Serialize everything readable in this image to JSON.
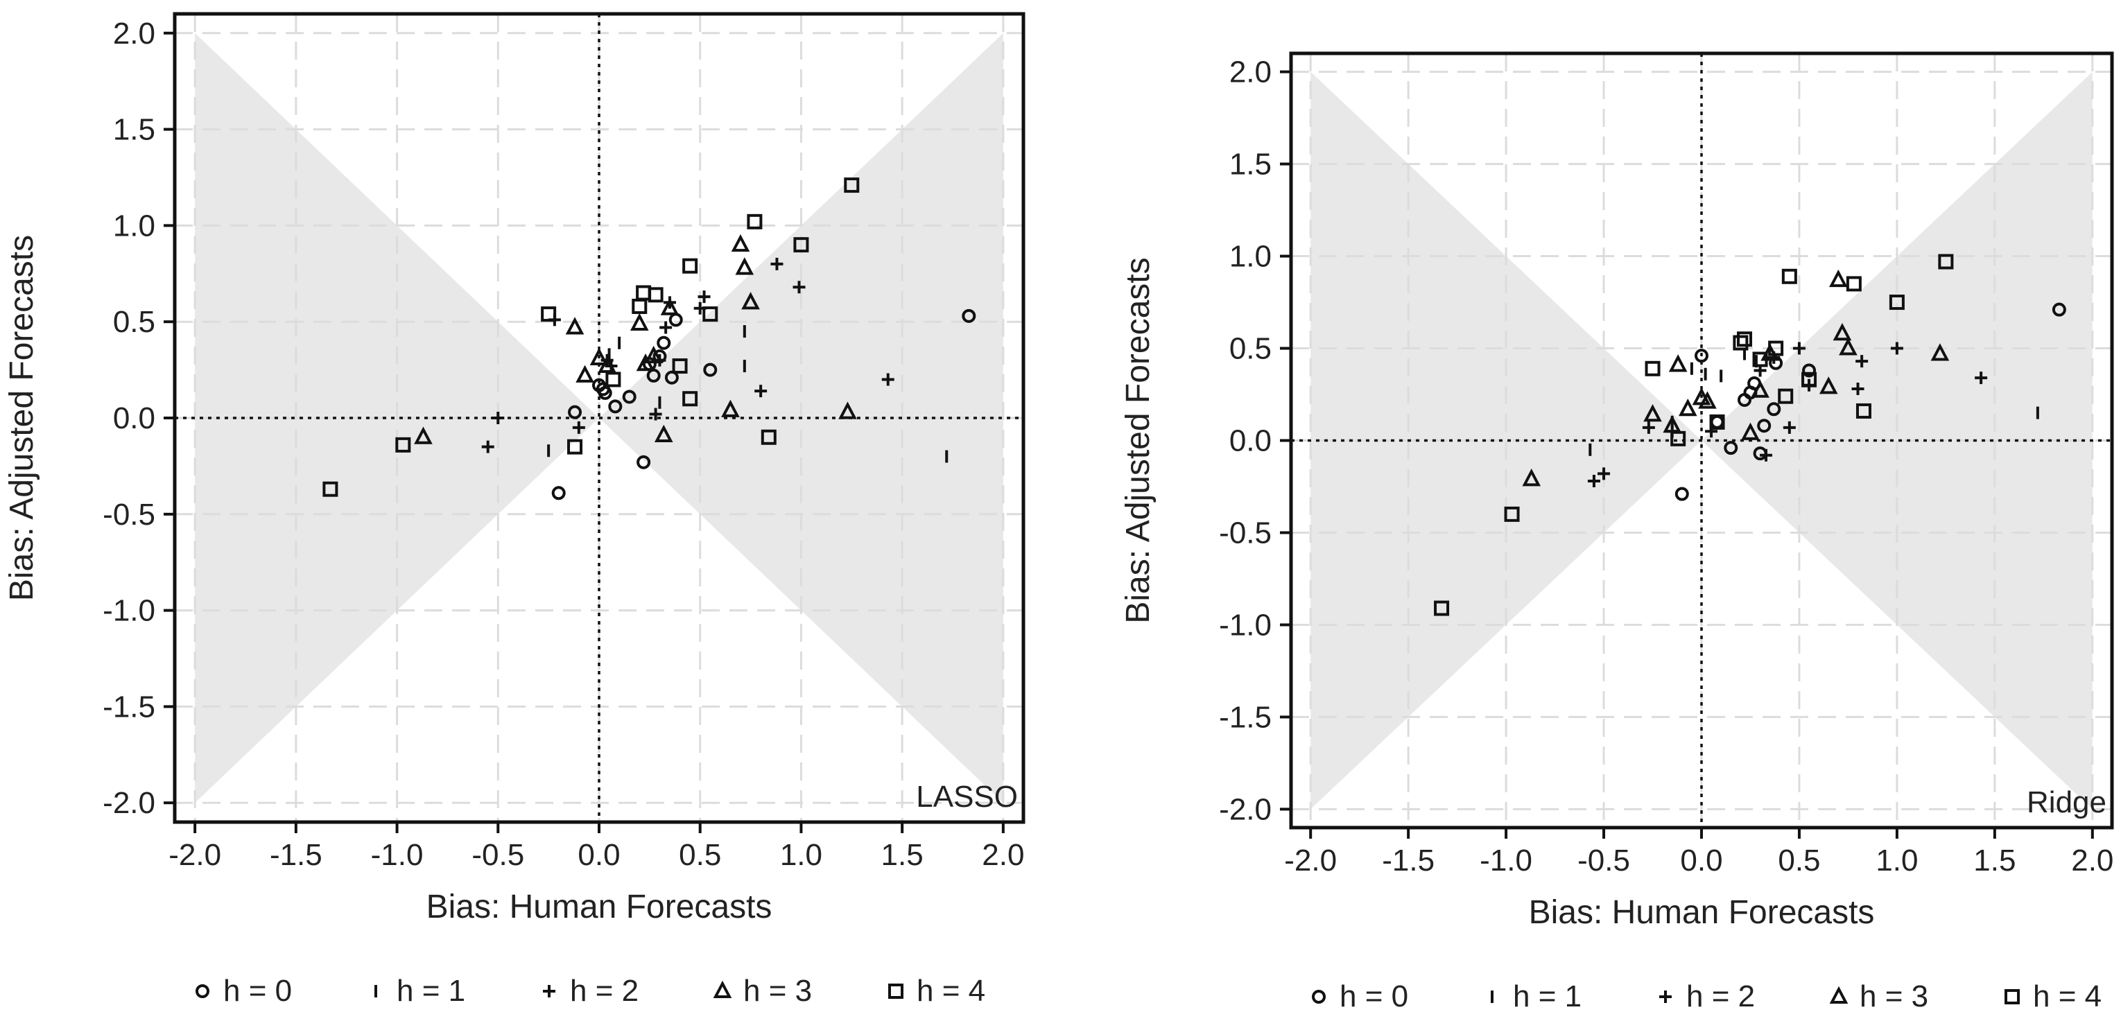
{
  "chart_data": [
    {
      "type": "scatter",
      "model": "LASSO",
      "xlabel": "Bias: Human Forecasts",
      "ylabel": "Bias: Adjusted Forecasts",
      "xlim": [
        -2.1,
        2.1
      ],
      "ylim": [
        -2.1,
        2.1
      ],
      "xticks": [
        "-2.0",
        "-1.5",
        "-1.0",
        "-0.5",
        "0.0",
        "0.5",
        "1.0",
        "1.5",
        "2.0"
      ],
      "yticks": [
        "-2.0",
        "-1.5",
        "-1.0",
        "-0.5",
        "0.0",
        "0.5",
        "1.0",
        "1.5",
        "2.0"
      ],
      "grid": true,
      "shaded_region": "|y| <= |x| (adjusted bias smaller than human bias)",
      "series": [
        {
          "name": "h = 0",
          "marker": "circle",
          "points": [
            [
              -0.2,
              -0.39
            ],
            [
              -0.12,
              0.03
            ],
            [
              0.0,
              0.17
            ],
            [
              0.02,
              0.15
            ],
            [
              0.03,
              0.13
            ],
            [
              0.08,
              0.06
            ],
            [
              0.15,
              0.11
            ],
            [
              0.22,
              -0.23
            ],
            [
              0.25,
              0.28
            ],
            [
              0.27,
              0.22
            ],
            [
              0.3,
              0.32
            ],
            [
              0.32,
              0.39
            ],
            [
              0.36,
              0.21
            ],
            [
              0.38,
              0.51
            ],
            [
              0.55,
              0.25
            ],
            [
              1.83,
              0.53
            ]
          ]
        },
        {
          "name": "h = 1",
          "marker": "bar",
          "points": [
            [
              -0.25,
              -0.17
            ],
            [
              0.05,
              0.33
            ],
            [
              0.1,
              0.39
            ],
            [
              0.3,
              0.08
            ],
            [
              0.72,
              0.45
            ],
            [
              0.72,
              0.27
            ],
            [
              1.72,
              -0.2
            ]
          ]
        },
        {
          "name": "h = 2",
          "marker": "plus",
          "points": [
            [
              -0.22,
              0.51
            ],
            [
              -0.55,
              -0.15
            ],
            [
              -0.5,
              0.0
            ],
            [
              -0.1,
              -0.05
            ],
            [
              0.04,
              0.3
            ],
            [
              0.06,
              0.27
            ],
            [
              0.28,
              0.02
            ],
            [
              0.3,
              0.3
            ],
            [
              0.33,
              0.47
            ],
            [
              0.35,
              0.6
            ],
            [
              0.5,
              0.57
            ],
            [
              0.52,
              0.63
            ],
            [
              0.8,
              0.14
            ],
            [
              0.88,
              0.8
            ],
            [
              0.99,
              0.68
            ],
            [
              1.43,
              0.2
            ]
          ]
        },
        {
          "name": "h = 3",
          "marker": "triangle",
          "points": [
            [
              -0.87,
              -0.1
            ],
            [
              -0.12,
              0.47
            ],
            [
              -0.07,
              0.22
            ],
            [
              0.0,
              0.31
            ],
            [
              0.04,
              0.27
            ],
            [
              0.2,
              0.49
            ],
            [
              0.23,
              0.28
            ],
            [
              0.27,
              0.32
            ],
            [
              0.32,
              -0.09
            ],
            [
              0.35,
              0.57
            ],
            [
              0.65,
              0.04
            ],
            [
              0.7,
              0.9
            ],
            [
              0.72,
              0.78
            ],
            [
              0.75,
              0.6
            ],
            [
              1.23,
              0.03
            ]
          ]
        },
        {
          "name": "h = 4",
          "marker": "square",
          "points": [
            [
              -1.33,
              -0.37
            ],
            [
              -0.97,
              -0.14
            ],
            [
              -0.25,
              0.54
            ],
            [
              -0.12,
              -0.15
            ],
            [
              0.07,
              0.2
            ],
            [
              0.2,
              0.58
            ],
            [
              0.22,
              0.65
            ],
            [
              0.28,
              0.64
            ],
            [
              0.4,
              0.27
            ],
            [
              0.45,
              0.1
            ],
            [
              0.45,
              0.79
            ],
            [
              0.55,
              0.54
            ],
            [
              0.77,
              1.02
            ],
            [
              0.84,
              -0.1
            ],
            [
              1.0,
              0.9
            ],
            [
              1.25,
              1.21
            ]
          ]
        }
      ]
    },
    {
      "type": "scatter",
      "model": "Ridge",
      "xlabel": "Bias: Human Forecasts",
      "ylabel": "Bias: Adjusted Forecasts",
      "xlim": [
        -2.1,
        2.1
      ],
      "ylim": [
        -2.1,
        2.1
      ],
      "xticks": [
        "-2.0",
        "-1.5",
        "-1.0",
        "-0.5",
        "0.0",
        "0.5",
        "1.0",
        "1.5",
        "2.0"
      ],
      "yticks": [
        "-2.0",
        "-1.5",
        "-1.0",
        "-0.5",
        "0.0",
        "0.5",
        "1.0",
        "1.5",
        "2.0"
      ],
      "grid": true,
      "shaded_region": "|y| <= |x| (adjusted bias smaller than human bias)",
      "series": [
        {
          "name": "h = 0",
          "marker": "circle",
          "points": [
            [
              -0.1,
              -0.29
            ],
            [
              0.0,
              0.46
            ],
            [
              0.08,
              0.1
            ],
            [
              0.15,
              -0.04
            ],
            [
              0.22,
              0.22
            ],
            [
              0.25,
              0.26
            ],
            [
              0.27,
              0.31
            ],
            [
              0.3,
              -0.07
            ],
            [
              0.32,
              0.08
            ],
            [
              0.37,
              0.17
            ],
            [
              0.38,
              0.42
            ],
            [
              0.55,
              0.38
            ],
            [
              1.83,
              0.71
            ]
          ]
        },
        {
          "name": "h = 1",
          "marker": "bar",
          "points": [
            [
              -0.57,
              -0.05
            ],
            [
              -0.15,
              0.1
            ],
            [
              -0.05,
              0.39
            ],
            [
              0.02,
              0.36
            ],
            [
              0.1,
              0.35
            ],
            [
              0.22,
              0.47
            ],
            [
              0.28,
              0.43
            ],
            [
              1.72,
              0.15
            ]
          ]
        },
        {
          "name": "h = 2",
          "marker": "plus",
          "points": [
            [
              -0.55,
              -0.22
            ],
            [
              -0.5,
              -0.18
            ],
            [
              -0.27,
              0.07
            ],
            [
              -0.15,
              0.05
            ],
            [
              0.05,
              0.05
            ],
            [
              0.3,
              0.38
            ],
            [
              0.33,
              -0.08
            ],
            [
              0.37,
              0.45
            ],
            [
              0.45,
              0.07
            ],
            [
              0.5,
              0.5
            ],
            [
              0.55,
              0.3
            ],
            [
              0.8,
              0.28
            ],
            [
              0.82,
              0.43
            ],
            [
              1.0,
              0.5
            ],
            [
              1.43,
              0.34
            ]
          ]
        },
        {
          "name": "h = 3",
          "marker": "triangle",
          "points": [
            [
              -0.87,
              -0.21
            ],
            [
              -0.25,
              0.14
            ],
            [
              -0.15,
              0.08
            ],
            [
              -0.12,
              0.41
            ],
            [
              -0.07,
              0.17
            ],
            [
              0.0,
              0.23
            ],
            [
              0.03,
              0.21
            ],
            [
              0.25,
              0.04
            ],
            [
              0.3,
              0.27
            ],
            [
              0.35,
              0.47
            ],
            [
              0.65,
              0.29
            ],
            [
              0.7,
              0.87
            ],
            [
              0.72,
              0.58
            ],
            [
              0.75,
              0.5
            ],
            [
              1.22,
              0.47
            ]
          ]
        },
        {
          "name": "h = 4",
          "marker": "square",
          "points": [
            [
              -1.33,
              -0.91
            ],
            [
              -0.97,
              -0.4
            ],
            [
              -0.25,
              0.39
            ],
            [
              -0.12,
              0.01
            ],
            [
              0.08,
              0.1
            ],
            [
              0.2,
              0.53
            ],
            [
              0.22,
              0.55
            ],
            [
              0.3,
              0.44
            ],
            [
              0.38,
              0.5
            ],
            [
              0.43,
              0.24
            ],
            [
              0.45,
              0.89
            ],
            [
              0.55,
              0.33
            ],
            [
              0.78,
              0.85
            ],
            [
              0.83,
              0.16
            ],
            [
              1.0,
              0.75
            ],
            [
              1.25,
              0.97
            ]
          ]
        }
      ]
    }
  ],
  "legend": [
    {
      "label": "h = 0",
      "marker": "circle"
    },
    {
      "label": "h = 1",
      "marker": "bar"
    },
    {
      "label": "h = 2",
      "marker": "plus"
    },
    {
      "label": "h = 3",
      "marker": "triangle"
    },
    {
      "label": "h = 4",
      "marker": "square"
    }
  ]
}
